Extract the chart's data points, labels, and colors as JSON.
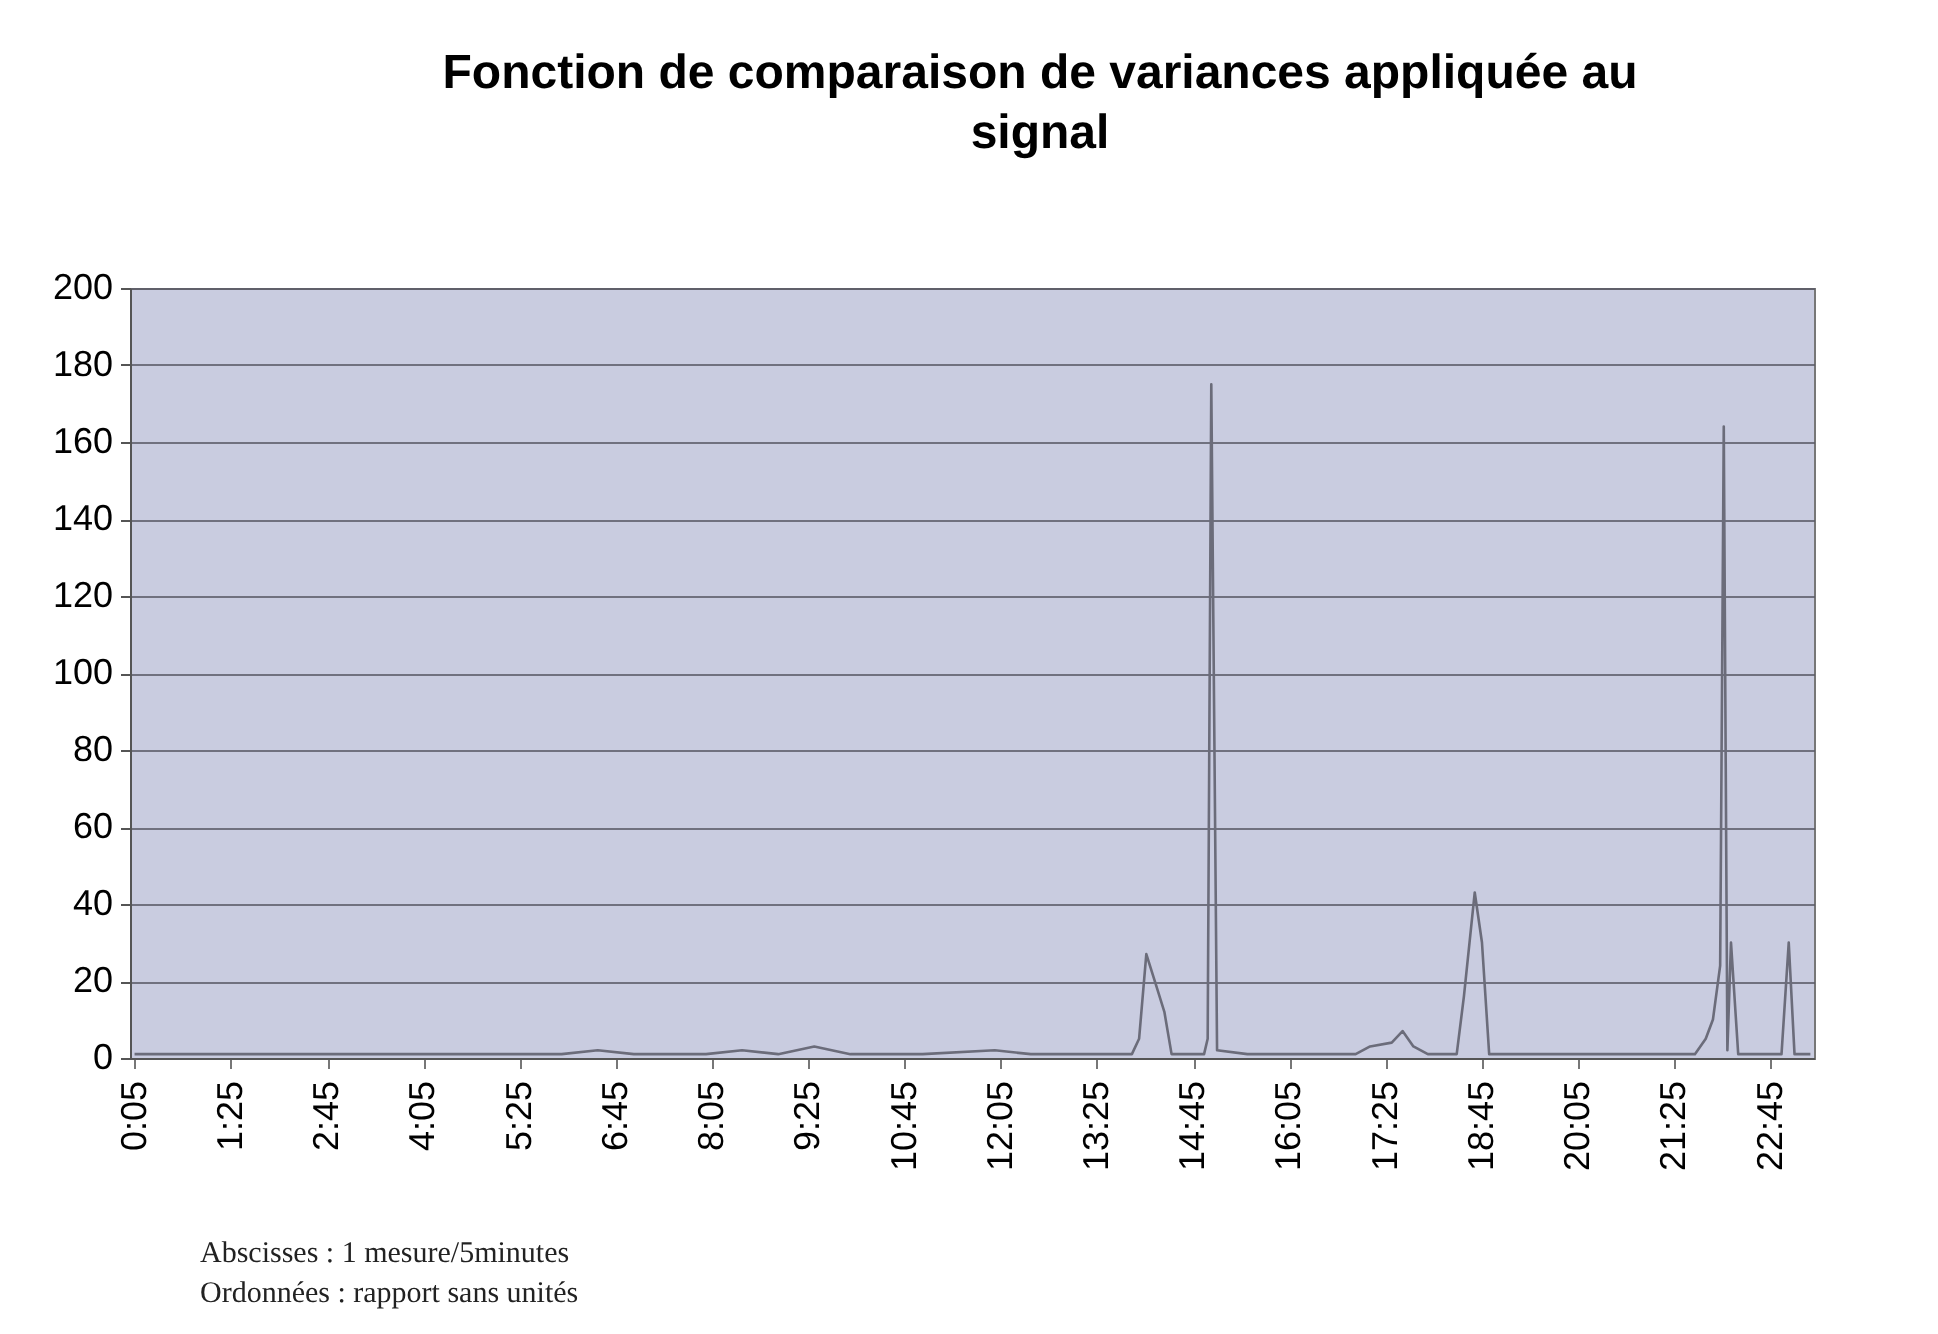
{
  "chart_data": {
    "type": "line",
    "title": "Fonction de comparaison de variances appliquée au signal",
    "annotations": [
      "Abscisses : 1 mesure/5minutes",
      "Ordonnées : rapport sans unités"
    ],
    "x": [
      0.0833,
      1,
      2,
      3,
      4,
      5,
      6,
      6.5,
      7,
      8,
      8.5,
      9,
      9.5,
      10,
      11,
      12,
      12.5,
      13,
      13.9,
      14.0,
      14.1,
      14.25,
      14.35,
      14.45,
      14.9,
      14.95,
      15.0,
      15.08,
      15.5,
      16,
      17,
      17.2,
      17.5,
      17.65,
      17.8,
      18.0,
      18.4,
      18.5,
      18.65,
      18.75,
      18.85,
      19,
      20,
      21,
      21.7,
      21.85,
      21.95,
      22.05,
      22.1,
      22.15,
      22.2,
      22.3,
      22.5,
      22.9,
      23.0,
      23.08,
      23.3
    ],
    "series": [
      {
        "color": "#6b6c7a",
        "values": [
          1,
          1,
          1,
          1,
          1,
          1,
          1,
          2,
          1,
          1,
          2,
          1,
          3,
          1,
          1,
          2,
          1,
          1,
          1,
          5,
          27,
          18,
          12,
          1,
          1,
          5,
          175,
          2,
          1,
          1,
          1,
          3,
          4,
          7,
          3,
          1,
          1,
          16,
          43,
          30,
          1,
          1,
          1,
          1,
          1,
          5,
          10,
          24,
          164,
          2,
          30,
          1,
          1,
          1,
          30,
          1,
          1
        ]
      }
    ],
    "xlim": [
      0.02,
      23.35
    ],
    "xticks": [
      {
        "value": 0.0833,
        "label": "0:05"
      },
      {
        "value": 1.4167,
        "label": "1:25"
      },
      {
        "value": 2.75,
        "label": "2:45"
      },
      {
        "value": 4.0833,
        "label": "4:05"
      },
      {
        "value": 5.4167,
        "label": "5:25"
      },
      {
        "value": 6.75,
        "label": "6:45"
      },
      {
        "value": 8.0833,
        "label": "8:05"
      },
      {
        "value": 9.4167,
        "label": "9:25"
      },
      {
        "value": 10.75,
        "label": "10:45"
      },
      {
        "value": 12.0833,
        "label": "12:05"
      },
      {
        "value": 13.4167,
        "label": "13:25"
      },
      {
        "value": 14.75,
        "label": "14:45"
      },
      {
        "value": 16.0833,
        "label": "16:05"
      },
      {
        "value": 17.4167,
        "label": "17:25"
      },
      {
        "value": 18.75,
        "label": "18:45"
      },
      {
        "value": 20.0833,
        "label": "20:05"
      },
      {
        "value": 21.4167,
        "label": "21:25"
      },
      {
        "value": 22.75,
        "label": "22:45"
      }
    ],
    "ylim": [
      0,
      200
    ],
    "yticks": [
      0,
      20,
      40,
      60,
      80,
      100,
      120,
      140,
      160,
      180,
      200
    ],
    "grid": "y"
  }
}
